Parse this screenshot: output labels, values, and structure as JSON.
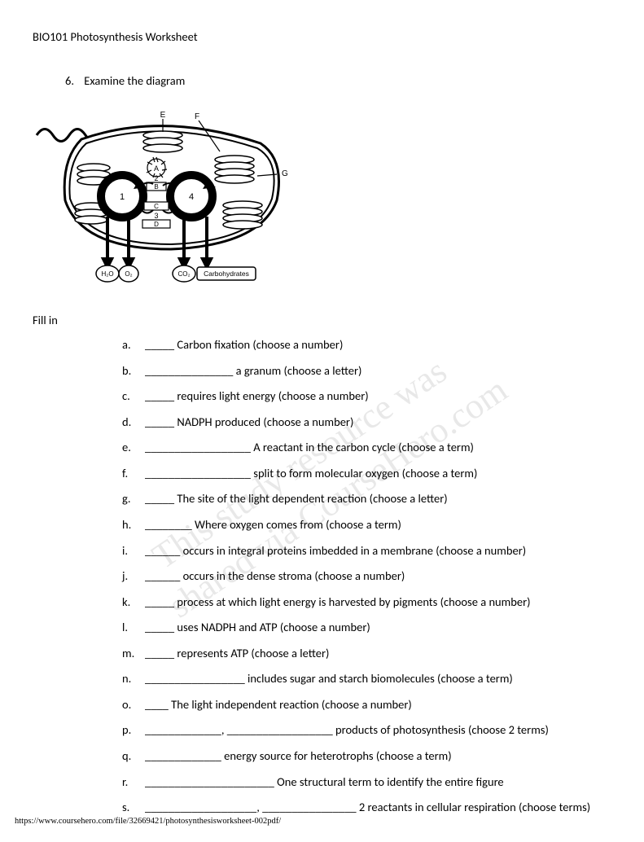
{
  "header": "BIO101  Photosynthesis Worksheet",
  "question_number": "6.",
  "question_text": "Examine the diagram",
  "fill_in_label": "Fill in",
  "items": [
    {
      "letter": "a.",
      "text": "_____ Carbon fixation (choose a number)"
    },
    {
      "letter": "b.",
      "text": "_______________ a granum (choose a letter)"
    },
    {
      "letter": "c.",
      "text": "_____ requires light energy (choose a number)"
    },
    {
      "letter": "d.",
      "text": "_____ NADPH produced  (choose a number)"
    },
    {
      "letter": "e.",
      "text": "__________________  A reactant in the carbon cycle (choose a term)"
    },
    {
      "letter": "f.",
      "text": "__________________  split to form molecular oxygen (choose a term)"
    },
    {
      "letter": "g.",
      "text": "_____  The site of the light dependent reaction (choose a letter)"
    },
    {
      "letter": "h.",
      "text": "________ Where oxygen comes from (choose a term)"
    },
    {
      "letter": "i.",
      "text": "______ occurs in integral proteins imbedded in a membrane (choose a number)"
    },
    {
      "letter": "j.",
      "text": "______ occurs in the dense stroma (choose a number)"
    },
    {
      "letter": "k.",
      "text": "_____ process at which light energy is harvested  by pigments (choose a number)"
    },
    {
      "letter": "l.",
      "text": "_____ uses NADPH and ATP (choose a number)"
    },
    {
      "letter": "m.",
      "text": "_____ represents ATP (choose a letter)"
    },
    {
      "letter": "n.",
      "text": "_________________ includes sugar and starch biomolecules (choose a term)"
    },
    {
      "letter": "o.",
      "text": "____ The light independent reaction (choose a number)"
    },
    {
      "letter": "p.",
      "text": "_____________, __________________   products of photosynthesis (choose 2 terms)"
    },
    {
      "letter": "q.",
      "text": "_____________ energy source for heterotrophs (choose a term)"
    },
    {
      "letter": "r.",
      "text": "______________________ One structural term to identify the entire figure"
    },
    {
      "letter": "s.",
      "text": "___________________, ________________ 2 reactants in cellular respiration (choose terms)"
    }
  ],
  "diagram": {
    "labels_top": {
      "E": "E",
      "F": "F",
      "G": "G"
    },
    "labels_mid": {
      "A": "A",
      "B": "B",
      "C": "C",
      "D": "D"
    },
    "labels_circle": {
      "one": "1",
      "two": "2",
      "three": "3",
      "four": "4"
    },
    "outputs": {
      "h2o": "H₂O",
      "o2": "O₂",
      "co2": "CO₂",
      "carbs": "Carbohydrates"
    },
    "stroke": "#000000",
    "fill": "#ffffff"
  },
  "watermark": {
    "line1": "This study resource was",
    "line2": "shared via CourseHero.com"
  },
  "footer_url": "https://www.coursehero.com/file/32669421/photosynthesisworksheet-002pdf/"
}
